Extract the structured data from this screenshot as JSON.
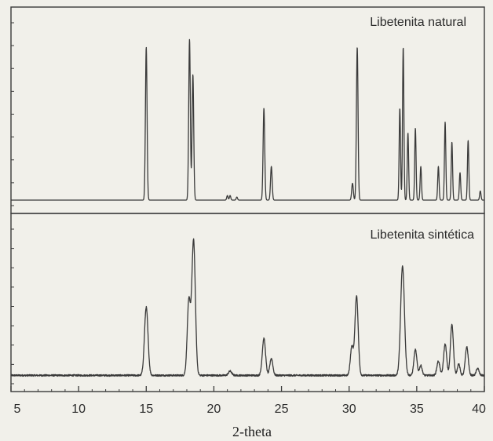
{
  "chart_data": {
    "type": "line",
    "xlabel": "2-theta",
    "xlim": [
      5,
      40
    ],
    "x_ticks": [
      5,
      10,
      15,
      20,
      25,
      30,
      35,
      40
    ],
    "grid": false,
    "legend": "none",
    "panels": [
      {
        "name": "Libetenita natural",
        "label_position": "top-right",
        "ylim": [
          0,
          1.0
        ],
        "baseline": 0.0,
        "noise": 0.0,
        "peaks": [
          {
            "x": 15.0,
            "height": 1.0,
            "width": 0.06
          },
          {
            "x": 18.2,
            "height": 1.05,
            "width": 0.06
          },
          {
            "x": 18.45,
            "height": 0.82,
            "width": 0.06
          },
          {
            "x": 21.0,
            "height": 0.03,
            "width": 0.05
          },
          {
            "x": 21.2,
            "height": 0.03,
            "width": 0.05
          },
          {
            "x": 21.7,
            "height": 0.02,
            "width": 0.05
          },
          {
            "x": 23.7,
            "height": 0.6,
            "width": 0.06
          },
          {
            "x": 24.25,
            "height": 0.22,
            "width": 0.06
          },
          {
            "x": 30.25,
            "height": 0.11,
            "width": 0.06
          },
          {
            "x": 30.6,
            "height": 1.0,
            "width": 0.06
          },
          {
            "x": 33.75,
            "height": 0.6,
            "width": 0.05
          },
          {
            "x": 34.0,
            "height": 1.0,
            "width": 0.05
          },
          {
            "x": 34.35,
            "height": 0.44,
            "width": 0.05
          },
          {
            "x": 34.9,
            "height": 0.47,
            "width": 0.05
          },
          {
            "x": 35.3,
            "height": 0.22,
            "width": 0.05
          },
          {
            "x": 36.6,
            "height": 0.22,
            "width": 0.05
          },
          {
            "x": 37.1,
            "height": 0.51,
            "width": 0.05
          },
          {
            "x": 37.6,
            "height": 0.38,
            "width": 0.05
          },
          {
            "x": 38.2,
            "height": 0.18,
            "width": 0.05
          },
          {
            "x": 38.8,
            "height": 0.39,
            "width": 0.05
          },
          {
            "x": 39.7,
            "height": 0.06,
            "width": 0.05
          }
        ]
      },
      {
        "name": "Libetenita sintética",
        "label_position": "top-right",
        "ylim": [
          0,
          1.0
        ],
        "baseline": 0.02,
        "noise": 0.006,
        "peaks": [
          {
            "x": 15.0,
            "height": 0.48,
            "width": 0.13
          },
          {
            "x": 18.15,
            "height": 0.52,
            "width": 0.12
          },
          {
            "x": 18.5,
            "height": 0.95,
            "width": 0.13
          },
          {
            "x": 21.2,
            "height": 0.03,
            "width": 0.12
          },
          {
            "x": 23.7,
            "height": 0.26,
            "width": 0.12
          },
          {
            "x": 24.25,
            "height": 0.12,
            "width": 0.11
          },
          {
            "x": 30.2,
            "height": 0.2,
            "width": 0.11
          },
          {
            "x": 30.55,
            "height": 0.56,
            "width": 0.12
          },
          {
            "x": 33.95,
            "height": 0.77,
            "width": 0.14
          },
          {
            "x": 34.9,
            "height": 0.18,
            "width": 0.11
          },
          {
            "x": 35.3,
            "height": 0.07,
            "width": 0.1
          },
          {
            "x": 36.6,
            "height": 0.1,
            "width": 0.11
          },
          {
            "x": 37.1,
            "height": 0.22,
            "width": 0.11
          },
          {
            "x": 37.6,
            "height": 0.36,
            "width": 0.11
          },
          {
            "x": 38.1,
            "height": 0.08,
            "width": 0.1
          },
          {
            "x": 38.7,
            "height": 0.2,
            "width": 0.11
          },
          {
            "x": 39.5,
            "height": 0.05,
            "width": 0.1
          }
        ]
      }
    ]
  }
}
